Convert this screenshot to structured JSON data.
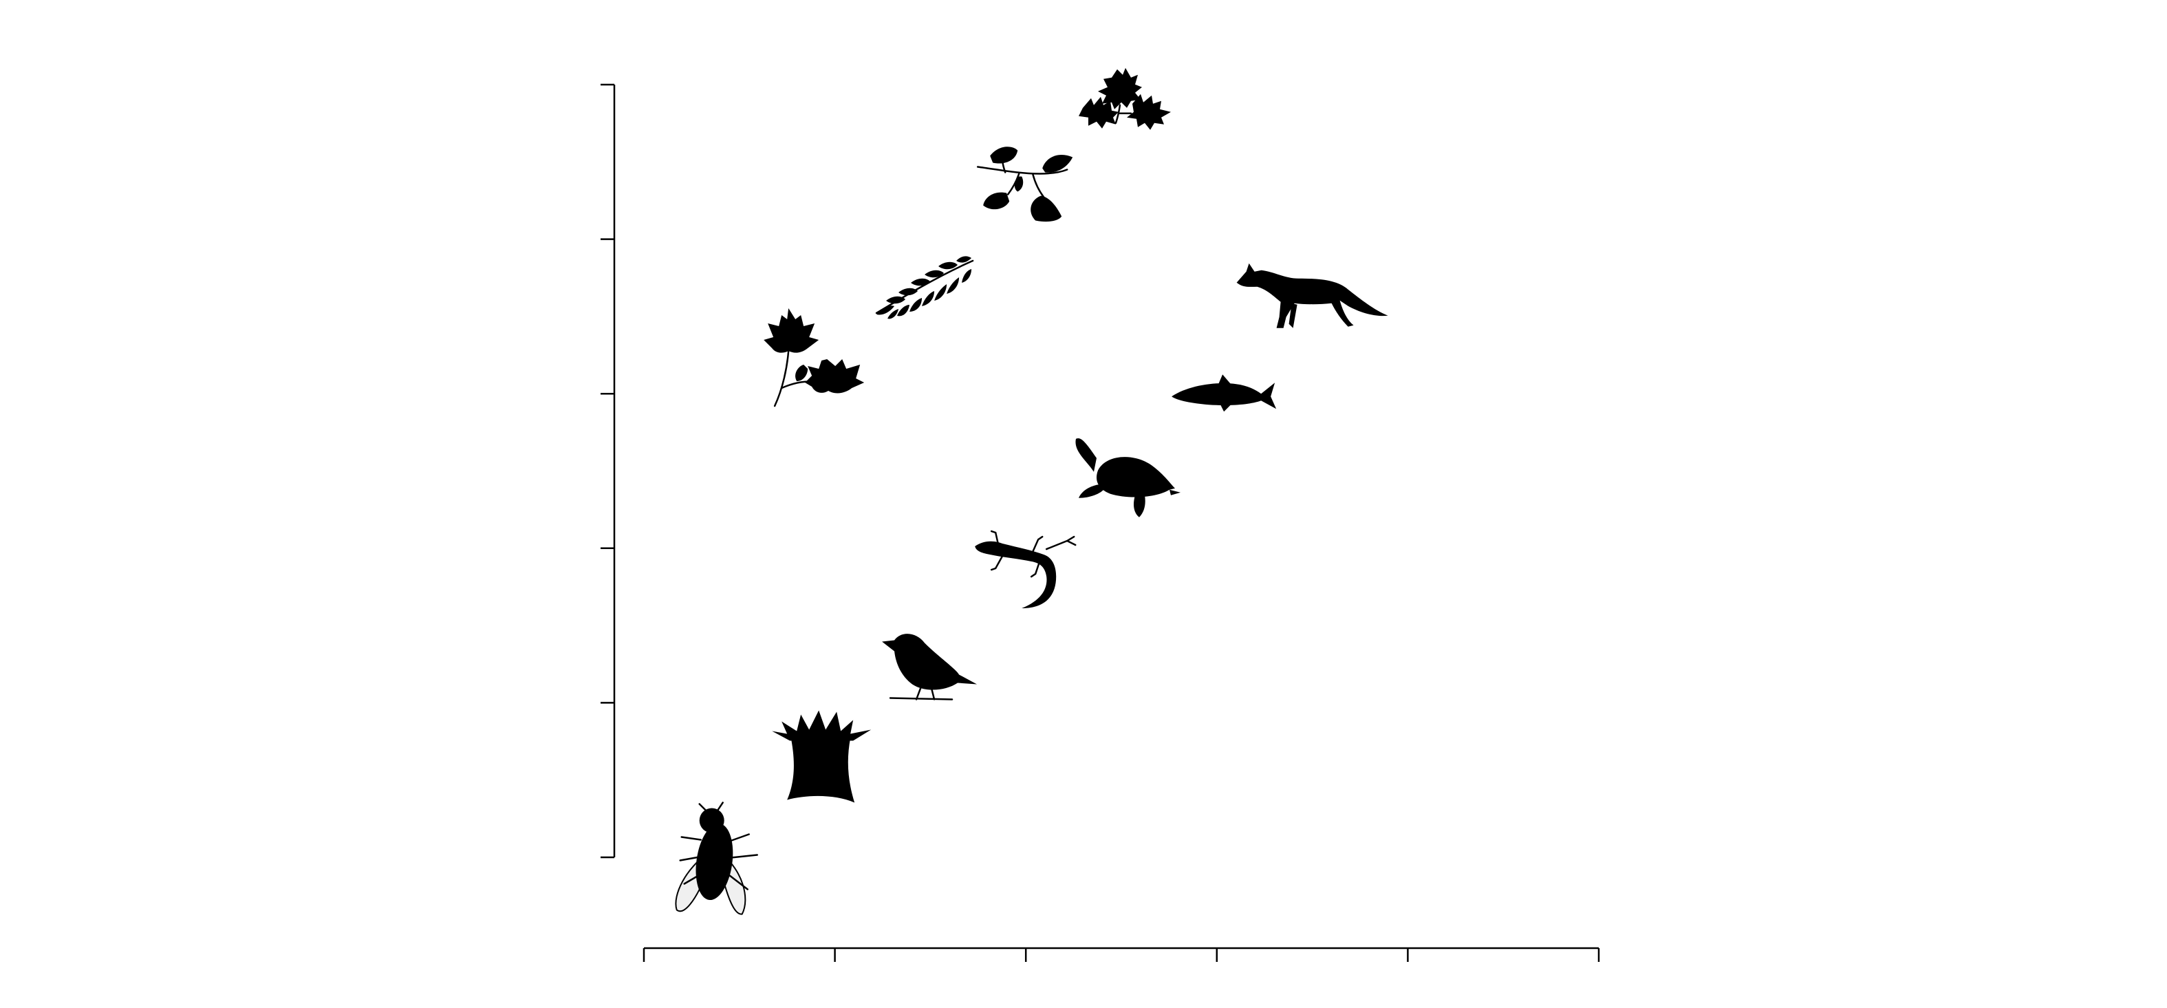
{
  "chart_data": {
    "type": "scatter",
    "title": "",
    "xlabel": "",
    "ylabel": "",
    "xlim": [
      0,
      5
    ],
    "ylim": [
      0,
      5
    ],
    "xticks": [
      0,
      1,
      2,
      3,
      4,
      5
    ],
    "yticks": [
      0,
      1,
      2,
      3,
      4,
      5
    ],
    "tick_labels_shown": false,
    "grid": false,
    "legend": "none",
    "marker_color": "#000000",
    "points": [
      {
        "marker": "fly-icon",
        "x": 0.37,
        "y": -0.02
      },
      {
        "marker": "sea-anemone-icon",
        "x": 0.93,
        "y": 0.63
      },
      {
        "marker": "bird-icon",
        "x": 1.47,
        "y": 1.2
      },
      {
        "marker": "lizard-icon",
        "x": 2.0,
        "y": 1.95
      },
      {
        "marker": "turtle-icon",
        "x": 2.5,
        "y": 2.45
      },
      {
        "marker": "fish-icon",
        "x": 3.03,
        "y": 3.0
      },
      {
        "marker": "fox-icon",
        "x": 3.5,
        "y": 3.63
      },
      {
        "marker": "maple-leaf-icon",
        "x": 0.93,
        "y": 3.17
      },
      {
        "marker": "fern-leaf-icon",
        "x": 1.47,
        "y": 3.7
      },
      {
        "marker": "birch-leaf-icon",
        "x": 2.0,
        "y": 4.37
      },
      {
        "marker": "oak-leaf-icon",
        "x": 2.5,
        "y": 4.85
      }
    ]
  }
}
